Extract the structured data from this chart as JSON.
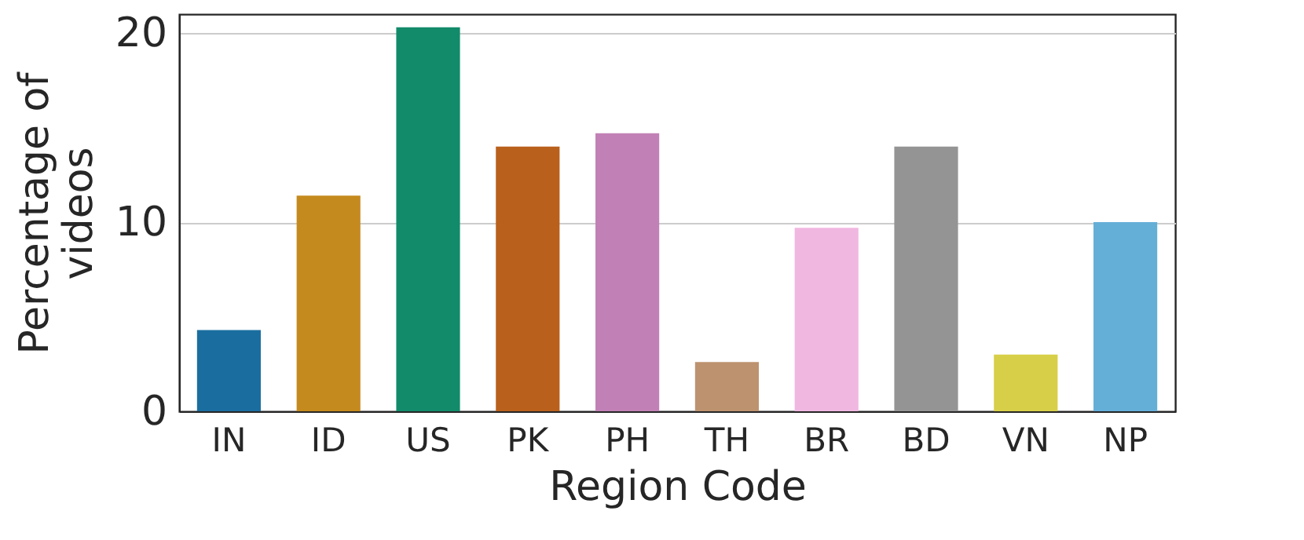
{
  "chart_data": {
    "type": "bar",
    "xlabel": "Region Code",
    "ylabel": "Percentage of videos",
    "categories": [
      "IN",
      "ID",
      "US",
      "PK",
      "PH",
      "TH",
      "BR",
      "BD",
      "VN",
      "NP"
    ],
    "values": [
      4.3,
      11.4,
      20.3,
      14.0,
      14.7,
      2.6,
      9.7,
      14.0,
      3.0,
      10.0
    ],
    "colors": [
      "#1a6e9f",
      "#c58a1e",
      "#128b6a",
      "#b9601c",
      "#c181b6",
      "#bd926f",
      "#f0b7e0",
      "#949494",
      "#d8cf48",
      "#64afd8"
    ],
    "ylim": [
      0,
      21
    ],
    "yticks": [
      0,
      10,
      20
    ],
    "grid": "y"
  }
}
